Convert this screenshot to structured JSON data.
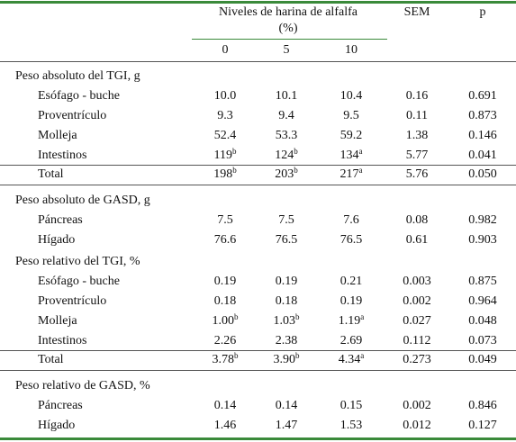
{
  "header": {
    "group_line1": "Niveles de harina de alfalfa",
    "group_line2": "(%)",
    "levels": [
      "0",
      "5",
      "10"
    ],
    "sem": "SEM",
    "p": "p"
  },
  "sections": [
    {
      "title": "Peso absoluto del TGI, g",
      "rows": [
        {
          "label": "Esófago - buche",
          "cells": [
            "10.0",
            "10.1",
            "10.4",
            "0.16",
            "0.691"
          ]
        },
        {
          "label": "Proventrículo",
          "cells": [
            "9.3",
            "9.4",
            "9.5",
            "0.11",
            "0.873"
          ]
        },
        {
          "label": "Molleja",
          "cells": [
            "52.4",
            "53.3",
            "59.2",
            "1.38",
            "0.146"
          ]
        },
        {
          "label": "Intestinos",
          "cells": [
            {
              "value": "119",
              "sup": "b"
            },
            {
              "value": "124",
              "sup": "b"
            },
            {
              "value": "134",
              "sup": "a"
            },
            "5.77",
            "0.041"
          ]
        }
      ],
      "total": {
        "label": "Total",
        "cells": [
          {
            "value": "198",
            "sup": "b"
          },
          {
            "value": "203",
            "sup": "b"
          },
          {
            "value": "217",
            "sup": "a"
          },
          "5.76",
          "0.050"
        ]
      }
    },
    {
      "title": "Peso absoluto de GASD, g",
      "rows": [
        {
          "label": "Páncreas",
          "cells": [
            "7.5",
            "7.5",
            "7.6",
            "0.08",
            "0.982"
          ]
        },
        {
          "label": "Hígado",
          "cells": [
            "76.6",
            "76.5",
            "76.5",
            "0.61",
            "0.903"
          ]
        }
      ]
    },
    {
      "title": "Peso relativo del TGI, %",
      "rows": [
        {
          "label": "Esófago - buche",
          "cells": [
            "0.19",
            "0.19",
            "0.21",
            "0.003",
            "0.875"
          ]
        },
        {
          "label": "Proventrículo",
          "cells": [
            "0.18",
            "0.18",
            "0.19",
            "0.002",
            "0.964"
          ]
        },
        {
          "label": "Molleja",
          "cells": [
            {
              "value": "1.00",
              "sup": "b"
            },
            {
              "value": "1.03",
              "sup": "b"
            },
            {
              "value": "1.19",
              "sup": "a"
            },
            "0.027",
            "0.048"
          ]
        },
        {
          "label": "Intestinos",
          "cells": [
            "2.26",
            "2.38",
            "2.69",
            "0.112",
            "0.073"
          ]
        }
      ],
      "total": {
        "label": "Total",
        "cells": [
          {
            "value": "3.78",
            "sup": "b"
          },
          {
            "value": "3.90",
            "sup": "b"
          },
          {
            "value": "4.34",
            "sup": "a"
          },
          "0.273",
          "0.049"
        ]
      }
    },
    {
      "title": "Peso relativo de GASD, %",
      "rows": [
        {
          "label": "Páncreas",
          "cells": [
            "0.14",
            "0.14",
            "0.15",
            "0.002",
            "0.846"
          ]
        },
        {
          "label": "Hígado",
          "cells": [
            "1.46",
            "1.47",
            "1.53",
            "0.012",
            "0.127"
          ]
        }
      ]
    }
  ]
}
